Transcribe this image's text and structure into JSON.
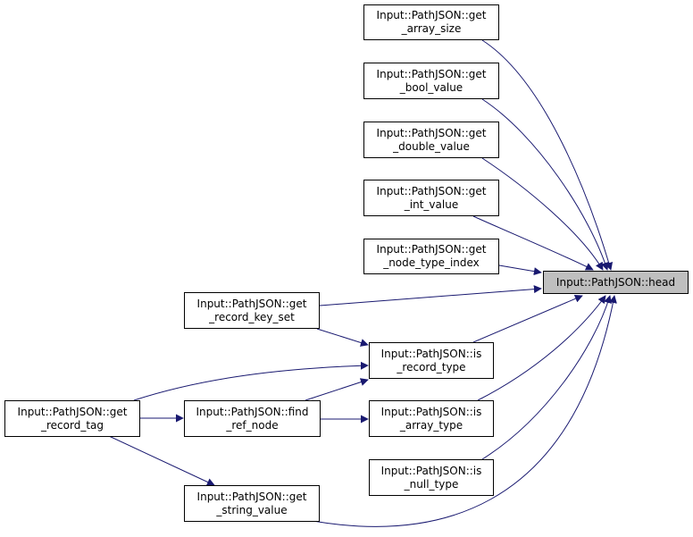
{
  "edge_color": "#191970",
  "focus_fill": "#bfbfbf",
  "nodes": {
    "head": {
      "l1": "Input::PathJSON::head"
    },
    "get_array_size": {
      "l1": "Input::PathJSON::get",
      "l2": "_array_size"
    },
    "get_bool_value": {
      "l1": "Input::PathJSON::get",
      "l2": "_bool_value"
    },
    "get_double_value": {
      "l1": "Input::PathJSON::get",
      "l2": "_double_value"
    },
    "get_int_value": {
      "l1": "Input::PathJSON::get",
      "l2": "_int_value"
    },
    "get_node_type_index": {
      "l1": "Input::PathJSON::get",
      "l2": "_node_type_index"
    },
    "get_record_key_set": {
      "l1": "Input::PathJSON::get",
      "l2": "_record_key_set"
    },
    "is_record_type": {
      "l1": "Input::PathJSON::is",
      "l2": "_record_type"
    },
    "get_record_tag": {
      "l1": "Input::PathJSON::get",
      "l2": "_record_tag"
    },
    "find_ref_node": {
      "l1": "Input::PathJSON::find",
      "l2": "_ref_node"
    },
    "is_array_type": {
      "l1": "Input::PathJSON::is",
      "l2": "_array_type"
    },
    "is_null_type": {
      "l1": "Input::PathJSON::is",
      "l2": "_null_type"
    },
    "get_string_value": {
      "l1": "Input::PathJSON::get",
      "l2": "_string_value"
    }
  }
}
